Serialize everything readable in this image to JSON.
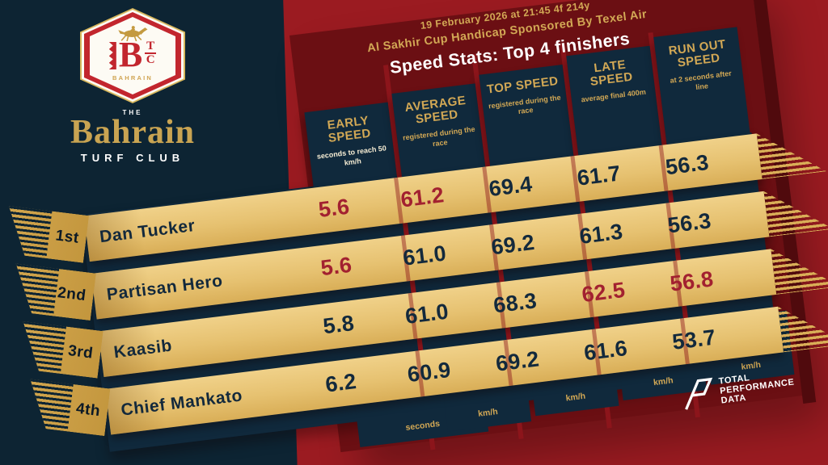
{
  "header": {
    "date_line": "19 February 2026 at 21:45 4f 214y",
    "race_line": "Al Sakhir Cup Handicap Sponsored By Texel Air",
    "title": "Speed Stats: Top 4 finishers"
  },
  "branding": {
    "letter_b": "B",
    "letter_t": "T",
    "letter_c": "C",
    "badge_country": "BAHRAIN",
    "club_the": "THE",
    "club_name": "Bahrain",
    "club_sub": "TURF CLUB",
    "horse_icon": "galloping-racehorse-with-jockey"
  },
  "partner": {
    "line1": "TOTAL",
    "line2": "PERFORMANCE",
    "line3": "DATA"
  },
  "columns": [
    {
      "title": "EARLY SPEED",
      "subtitle": "seconds to reach 50 km/h",
      "unit": "seconds",
      "subtitle_tone": "cream"
    },
    {
      "title": "AVERAGE SPEED",
      "subtitle": "registered during the race",
      "unit": "km/h",
      "subtitle_tone": "gold"
    },
    {
      "title": "TOP SPEED",
      "subtitle": "registered during the race",
      "unit": "km/h",
      "subtitle_tone": "gold"
    },
    {
      "title": "LATE SPEED",
      "subtitle": "average final 400m",
      "unit": "km/h",
      "subtitle_tone": "gold"
    },
    {
      "title": "RUN OUT SPEED",
      "subtitle": "at 2 seconds after line",
      "unit": "km/h",
      "subtitle_tone": "gold"
    }
  ],
  "rows": [
    {
      "position": "1st",
      "horse": "Dan Tucker",
      "values": [
        {
          "v": "5.6",
          "hl": true
        },
        {
          "v": "61.2",
          "hl": true
        },
        {
          "v": "69.4",
          "hl": false
        },
        {
          "v": "61.7",
          "hl": false
        },
        {
          "v": "56.3",
          "hl": false
        }
      ]
    },
    {
      "position": "2nd",
      "horse": "Partisan Hero",
      "values": [
        {
          "v": "5.6",
          "hl": true
        },
        {
          "v": "61.0",
          "hl": false
        },
        {
          "v": "69.2",
          "hl": false
        },
        {
          "v": "61.3",
          "hl": false
        },
        {
          "v": "56.3",
          "hl": false
        }
      ]
    },
    {
      "position": "3rd",
      "horse": "Kaasib",
      "values": [
        {
          "v": "5.8",
          "hl": false
        },
        {
          "v": "61.0",
          "hl": false
        },
        {
          "v": "68.3",
          "hl": false
        },
        {
          "v": "62.5",
          "hl": true
        },
        {
          "v": "56.8",
          "hl": true
        }
      ]
    },
    {
      "position": "4th",
      "horse": "Chief Mankato",
      "values": [
        {
          "v": "6.2",
          "hl": false
        },
        {
          "v": "60.9",
          "hl": false
        },
        {
          "v": "69.2",
          "hl": false
        },
        {
          "v": "61.6",
          "hl": false
        },
        {
          "v": "53.7",
          "hl": false
        }
      ]
    }
  ],
  "colors": {
    "navy_background": "#0d2433",
    "panel_navy": "#10293c",
    "maroon_panel": "#6b0f13",
    "bright_red": "#9b1b21",
    "ribbon_gold": "#e6c170",
    "gold_text": "#d2a855",
    "highlight_value_red": "#a22130",
    "value_navy": "#13293c",
    "white": "#ffffff"
  }
}
